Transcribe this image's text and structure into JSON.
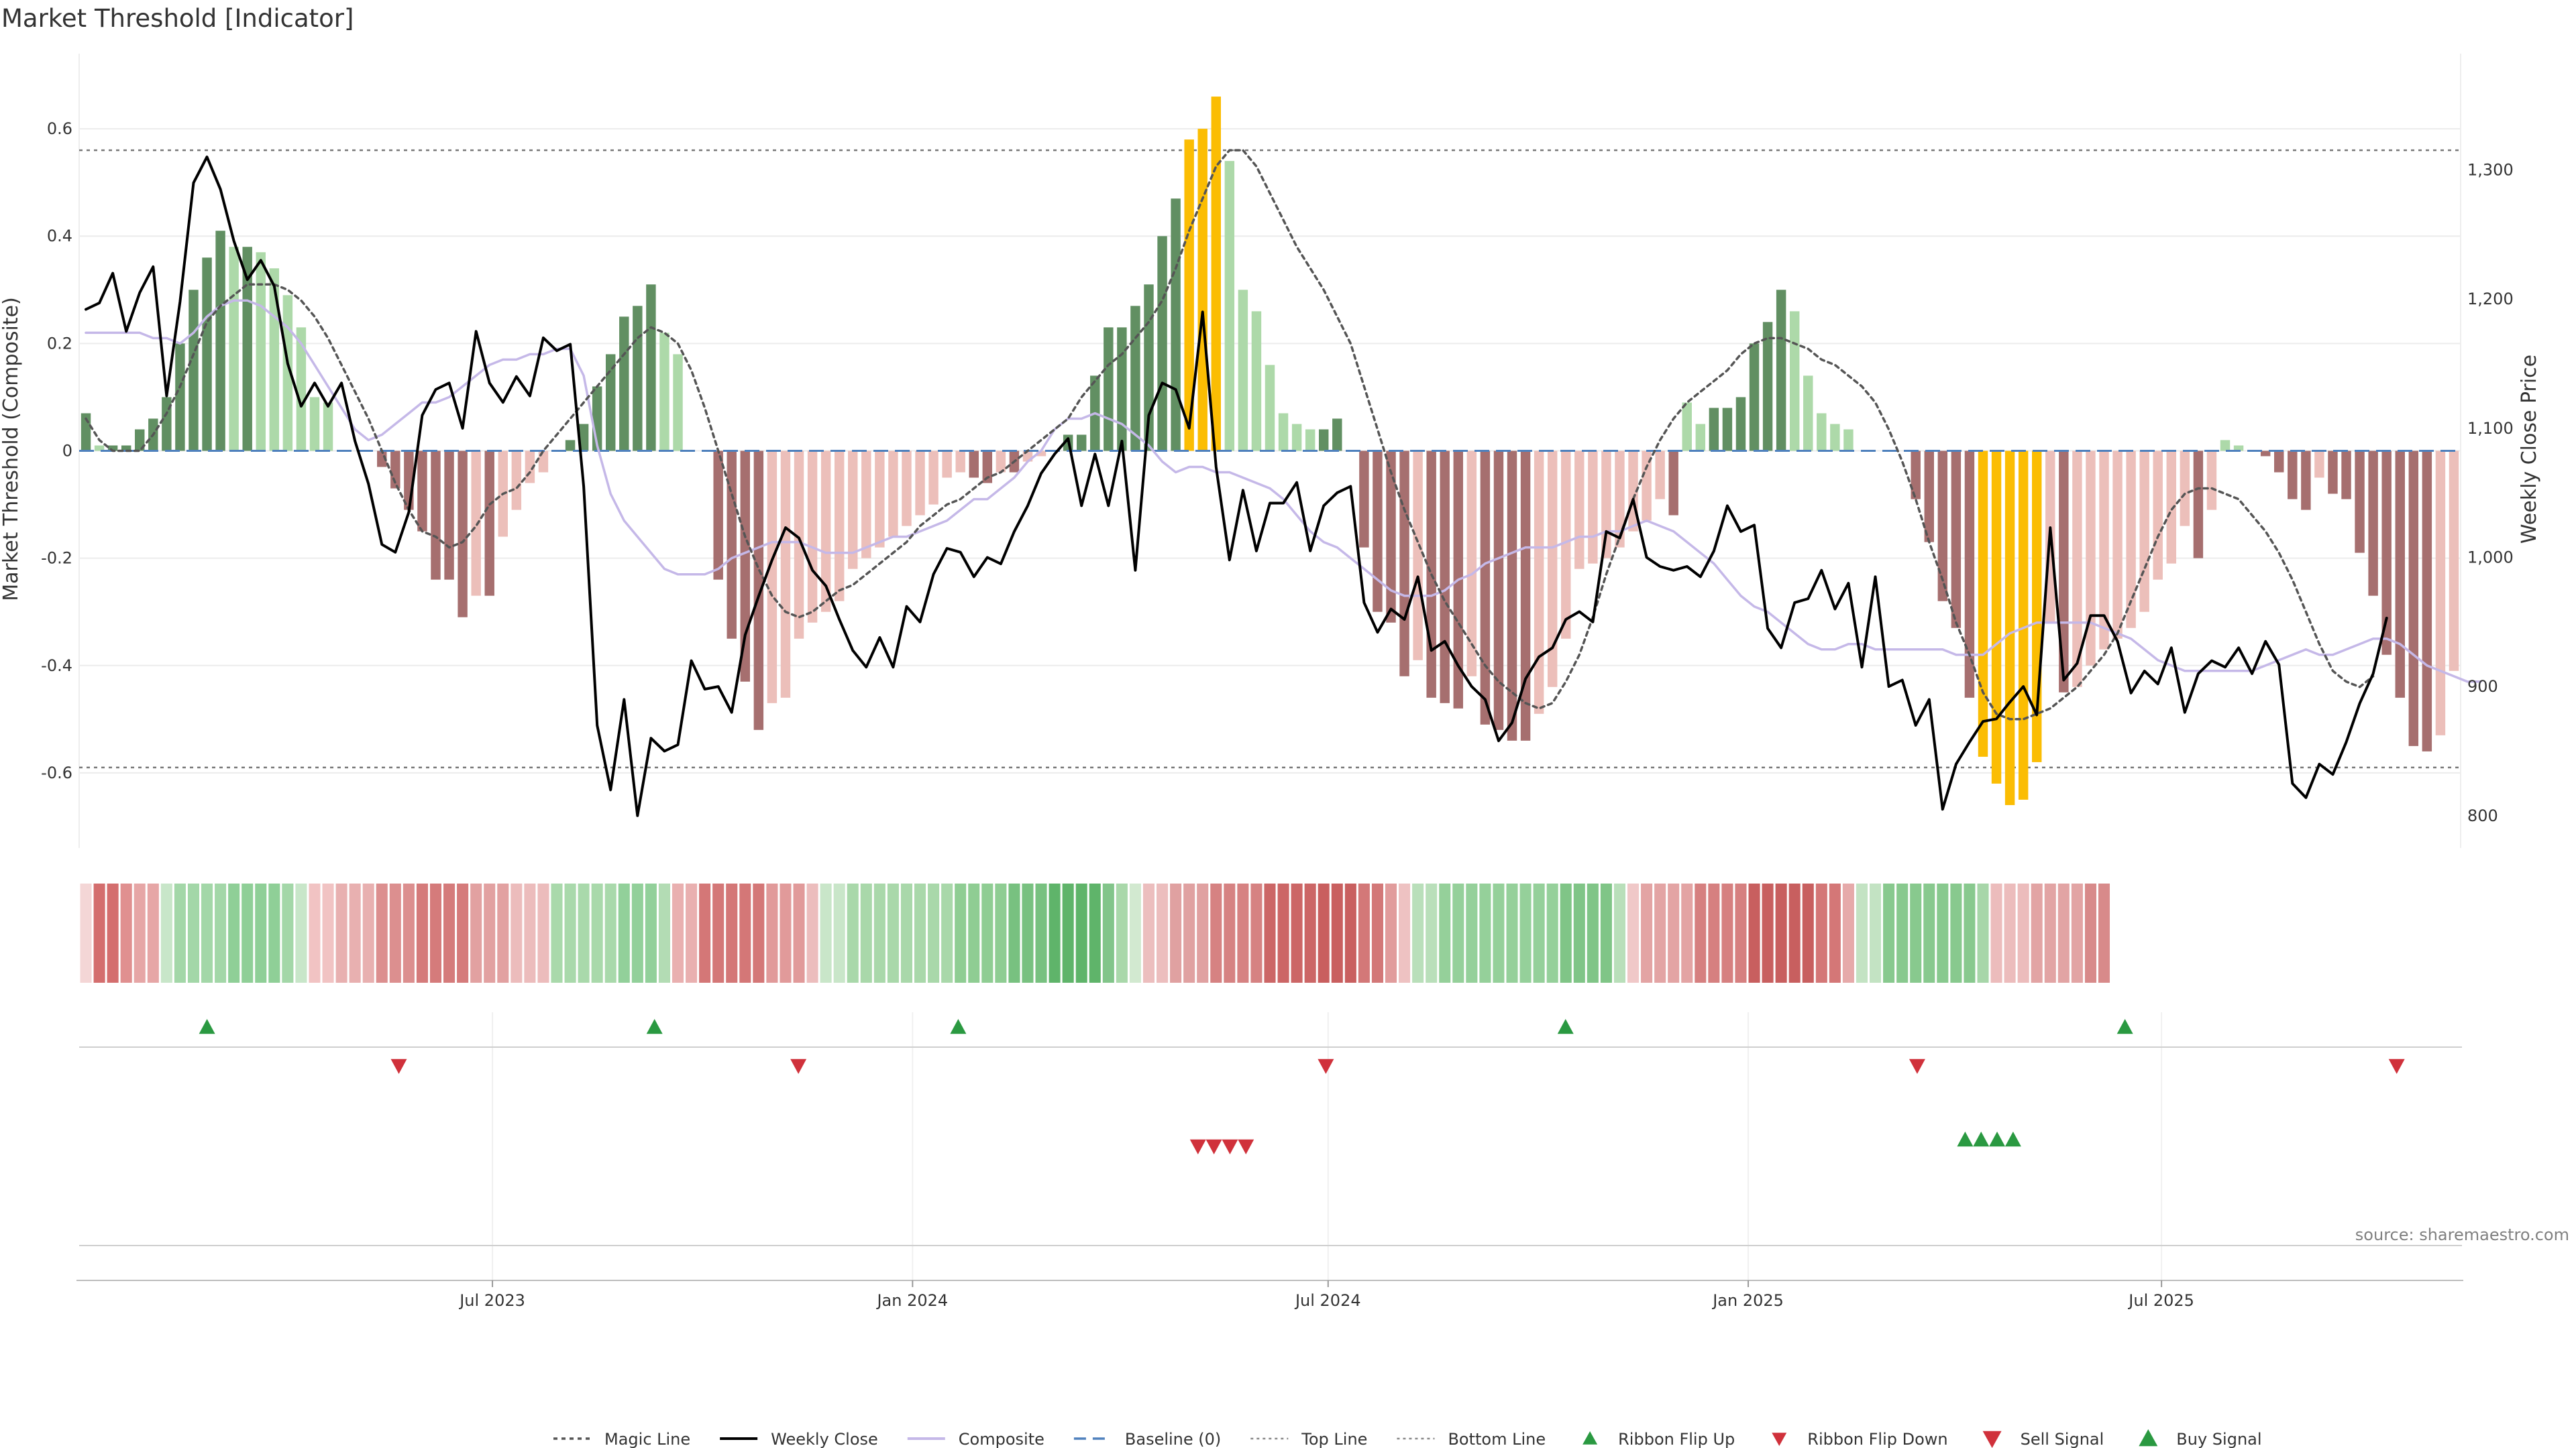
{
  "chart_data": {
    "type": "bar",
    "title": "Market Threshold [Indicator]",
    "ylabel_left": "Market Threshold (Composite)",
    "ylabel_right": "Weekly Close Price",
    "source": "source: sharemaestro.com",
    "x_range": [
      "2023-01-01",
      "2025-11-09"
    ],
    "x_ticks": [
      {
        "date": "2023-07-01",
        "label": "Jul 2023"
      },
      {
        "date": "2024-01-01",
        "label": "Jan 2024"
      },
      {
        "date": "2024-07-01",
        "label": "Jul 2024"
      },
      {
        "date": "2025-01-01",
        "label": "Jan 2025"
      },
      {
        "date": "2025-07-01",
        "label": "Jul 2025"
      }
    ],
    "y_left": {
      "range": [
        -0.74,
        0.74
      ],
      "ticks": [
        0.6,
        0.4,
        0.2,
        0,
        -0.2,
        -0.4,
        -0.6
      ],
      "tick_labels": [
        "0.6",
        "0.4",
        "0.2",
        "0",
        "-0.2",
        "-0.4",
        "-0.6"
      ]
    },
    "y_right": {
      "range": [
        775,
        1390
      ],
      "ticks": [
        1300,
        1200,
        1100,
        1000,
        900,
        800
      ],
      "tick_labels": [
        "1,300",
        "1,200",
        "1,100",
        "1,000",
        "900",
        "800"
      ]
    },
    "top_line": 0.56,
    "bottom_line": -0.59,
    "baseline": 0,
    "grid": true,
    "legend_position": "bottom-center",
    "colors": {
      "bull_strong": "#618f62",
      "bull_weak": "#add9a9",
      "bear_strong": "#a66f6f",
      "bear_weak": "#ecbfba",
      "extreme": "#fbbd03",
      "weekly_close": "#000000",
      "composite": "#c5b8e8",
      "magic_line": "#555555",
      "baseline": "#4f81bd",
      "buy": "#2a9941",
      "sell": "#d0313b"
    },
    "composite": [
      0.07,
      0.01,
      0.01,
      0.01,
      0.04,
      0.06,
      0.1,
      0.2,
      0.3,
      0.36,
      0.41,
      0.38,
      0.38,
      0.37,
      0.34,
      0.29,
      0.23,
      0.1,
      0.09,
      0.0,
      0.0,
      0.0,
      -0.03,
      -0.07,
      -0.11,
      -0.15,
      -0.24,
      -0.24,
      -0.31,
      -0.27,
      -0.27,
      -0.16,
      -0.11,
      -0.06,
      -0.04,
      0.0,
      0.02,
      0.05,
      0.12,
      0.18,
      0.25,
      0.27,
      0.31,
      0.22,
      0.18,
      0.0,
      0.0,
      -0.24,
      -0.35,
      -0.43,
      -0.52,
      -0.47,
      -0.46,
      -0.35,
      -0.32,
      -0.3,
      -0.28,
      -0.22,
      -0.2,
      -0.18,
      -0.16,
      -0.14,
      -0.12,
      -0.1,
      -0.05,
      -0.04,
      -0.05,
      -0.06,
      -0.04,
      -0.04,
      -0.02,
      -0.01,
      0.0,
      0.03,
      0.03,
      0.14,
      0.23,
      0.23,
      0.27,
      0.31,
      0.4,
      0.47,
      0.58,
      0.6,
      0.66,
      0.54,
      0.3,
      0.26,
      0.16,
      0.07,
      0.05,
      0.04,
      0.04,
      0.06,
      0.0,
      -0.18,
      -0.3,
      -0.32,
      -0.42,
      -0.39,
      -0.46,
      -0.47,
      -0.48,
      -0.42,
      -0.51,
      -0.52,
      -0.54,
      -0.54,
      -0.49,
      -0.44,
      -0.35,
      -0.22,
      -0.21,
      -0.2,
      -0.18,
      -0.15,
      -0.13,
      -0.09,
      -0.12,
      0.09,
      0.05,
      0.08,
      0.08,
      0.1,
      0.2,
      0.24,
      0.3,
      0.26,
      0.14,
      0.07,
      0.05,
      0.04,
      0.0,
      0.0,
      0.0,
      0.0,
      -0.09,
      -0.17,
      -0.28,
      -0.33,
      -0.46,
      -0.57,
      -0.62,
      -0.66,
      -0.65,
      -0.58,
      -0.32,
      -0.45,
      -0.44,
      -0.4,
      -0.37,
      -0.35,
      -0.33,
      -0.3,
      -0.24,
      -0.21,
      -0.14,
      -0.2,
      -0.11,
      0.02,
      0.01,
      0.0,
      -0.01,
      -0.04,
      -0.09,
      -0.11,
      -0.05,
      -0.08,
      -0.09,
      -0.19,
      -0.27,
      -0.38,
      -0.46,
      -0.55,
      -0.56,
      -0.53,
      -0.41
    ],
    "weekly_close": [
      1192,
      1197,
      1220,
      1175,
      1205,
      1225,
      1125,
      1198,
      1290,
      1310,
      1285,
      1245,
      1215,
      1230,
      1210,
      1150,
      1117,
      1135,
      1117,
      1135,
      1090,
      1057,
      1010,
      1004,
      1035,
      1110,
      1130,
      1135,
      1100,
      1175,
      1135,
      1120,
      1140,
      1125,
      1170,
      1160,
      1165,
      1055,
      870,
      820,
      890,
      800,
      860,
      850,
      855,
      920,
      898,
      900,
      880,
      940,
      970,
      998,
      1023,
      1015,
      990,
      978,
      952,
      928,
      915,
      938,
      915,
      962,
      950,
      987,
      1007,
      1004,
      985,
      1000,
      995,
      1020,
      1040,
      1065,
      1080,
      1092,
      1040,
      1080,
      1040,
      1090,
      990,
      1110,
      1135,
      1130,
      1100,
      1190,
      1070,
      998,
      1052,
      1005,
      1042,
      1042,
      1058,
      1005,
      1040,
      1050,
      1055,
      965,
      942,
      960,
      952,
      985,
      928,
      935,
      916,
      900,
      890,
      858,
      872,
      906,
      923,
      930,
      952,
      958,
      950,
      1020,
      1015,
      1045,
      1000,
      993,
      990,
      993,
      985,
      1005,
      1040,
      1020,
      1025,
      945,
      930,
      965,
      968,
      990,
      960,
      980,
      915,
      985,
      900,
      905,
      870,
      890,
      805,
      840,
      857,
      873,
      875,
      888,
      900,
      878,
      1023,
      905,
      918,
      955,
      955,
      935,
      895,
      912,
      902,
      930,
      880,
      910,
      920,
      915,
      930,
      910,
      935,
      917,
      825,
      814,
      840,
      832,
      857,
      887,
      910,
      953
    ],
    "composite_smooth": [
      0.22,
      0.22,
      0.22,
      0.22,
      0.22,
      0.21,
      0.21,
      0.2,
      0.22,
      0.25,
      0.27,
      0.28,
      0.28,
      0.27,
      0.25,
      0.23,
      0.2,
      0.16,
      0.12,
      0.08,
      0.04,
      0.02,
      0.03,
      0.05,
      0.07,
      0.09,
      0.09,
      0.1,
      0.12,
      0.14,
      0.16,
      0.17,
      0.17,
      0.18,
      0.18,
      0.19,
      0.19,
      0.14,
      0.01,
      -0.08,
      -0.13,
      -0.16,
      -0.19,
      -0.22,
      -0.23,
      -0.23,
      -0.23,
      -0.22,
      -0.2,
      -0.19,
      -0.18,
      -0.17,
      -0.17,
      -0.17,
      -0.18,
      -0.19,
      -0.19,
      -0.19,
      -0.18,
      -0.17,
      -0.16,
      -0.16,
      -0.15,
      -0.14,
      -0.13,
      -0.11,
      -0.09,
      -0.09,
      -0.07,
      -0.05,
      -0.02,
      0.0,
      0.04,
      0.06,
      0.06,
      0.07,
      0.06,
      0.05,
      0.03,
      0.01,
      -0.02,
      -0.04,
      -0.03,
      -0.03,
      -0.04,
      -0.04,
      -0.05,
      -0.06,
      -0.07,
      -0.09,
      -0.12,
      -0.15,
      -0.17,
      -0.18,
      -0.2,
      -0.22,
      -0.24,
      -0.26,
      -0.27,
      -0.27,
      -0.27,
      -0.26,
      -0.24,
      -0.23,
      -0.21,
      -0.2,
      -0.19,
      -0.18,
      -0.18,
      -0.18,
      -0.17,
      -0.16,
      -0.16,
      -0.15,
      -0.15,
      -0.14,
      -0.13,
      -0.14,
      -0.15,
      -0.17,
      -0.19,
      -0.21,
      -0.24,
      -0.27,
      -0.29,
      -0.3,
      -0.32,
      -0.34,
      -0.36,
      -0.37,
      -0.37,
      -0.36,
      -0.36,
      -0.37,
      -0.37,
      -0.37,
      -0.37,
      -0.37,
      -0.37,
      -0.38,
      -0.38,
      -0.38,
      -0.36,
      -0.34,
      -0.33,
      -0.32,
      -0.32,
      -0.32,
      -0.32,
      -0.32,
      -0.33,
      -0.34,
      -0.35,
      -0.37,
      -0.39,
      -0.4,
      -0.41,
      -0.41,
      -0.41,
      -0.41,
      -0.41,
      -0.41,
      -0.4,
      -0.39,
      -0.38,
      -0.37,
      -0.38,
      -0.38,
      -0.37,
      -0.36,
      -0.35,
      -0.35,
      -0.36,
      -0.38,
      -0.4,
      -0.41,
      -0.42,
      -0.43,
      -0.43
    ],
    "magic_line": [
      0.06,
      0.02,
      0.0,
      0.0,
      0.0,
      0.03,
      0.07,
      0.12,
      0.18,
      0.24,
      0.27,
      0.29,
      0.31,
      0.31,
      0.31,
      0.3,
      0.28,
      0.25,
      0.21,
      0.16,
      0.11,
      0.06,
      0.0,
      -0.06,
      -0.11,
      -0.15,
      -0.16,
      -0.18,
      -0.17,
      -0.14,
      -0.1,
      -0.08,
      -0.07,
      -0.04,
      0.0,
      0.03,
      0.06,
      0.09,
      0.12,
      0.15,
      0.18,
      0.21,
      0.23,
      0.22,
      0.2,
      0.15,
      0.08,
      0.0,
      -0.08,
      -0.16,
      -0.22,
      -0.27,
      -0.3,
      -0.31,
      -0.3,
      -0.28,
      -0.26,
      -0.25,
      -0.23,
      -0.21,
      -0.19,
      -0.17,
      -0.14,
      -0.12,
      -0.1,
      -0.09,
      -0.07,
      -0.05,
      -0.04,
      -0.02,
      0.0,
      0.02,
      0.04,
      0.06,
      0.1,
      0.13,
      0.16,
      0.18,
      0.21,
      0.24,
      0.28,
      0.34,
      0.41,
      0.47,
      0.53,
      0.56,
      0.56,
      0.53,
      0.48,
      0.43,
      0.38,
      0.34,
      0.3,
      0.25,
      0.2,
      0.12,
      0.04,
      -0.04,
      -0.11,
      -0.17,
      -0.23,
      -0.28,
      -0.32,
      -0.36,
      -0.4,
      -0.43,
      -0.45,
      -0.47,
      -0.48,
      -0.47,
      -0.43,
      -0.38,
      -0.31,
      -0.23,
      -0.16,
      -0.09,
      -0.03,
      0.02,
      0.06,
      0.09,
      0.11,
      0.13,
      0.15,
      0.18,
      0.2,
      0.21,
      0.21,
      0.2,
      0.19,
      0.17,
      0.16,
      0.14,
      0.12,
      0.09,
      0.04,
      -0.02,
      -0.09,
      -0.17,
      -0.24,
      -0.32,
      -0.38,
      -0.45,
      -0.49,
      -0.5,
      -0.5,
      -0.49,
      -0.48,
      -0.46,
      -0.44,
      -0.41,
      -0.38,
      -0.34,
      -0.28,
      -0.22,
      -0.16,
      -0.11,
      -0.08,
      -0.07,
      -0.07,
      -0.08,
      -0.09,
      -0.12,
      -0.15,
      -0.19,
      -0.24,
      -0.3,
      -0.36,
      -0.41,
      -0.43,
      -0.44,
      -0.42
    ],
    "ribbon": [
      {
        "n": 1,
        "c": "#f4d6d6"
      },
      {
        "n": 2,
        "c": "#d46e6e"
      },
      {
        "n": 1,
        "c": "#e09090"
      },
      {
        "n": 2,
        "c": "#e6a6a6"
      },
      {
        "n": 1,
        "c": "#c8e6c9"
      },
      {
        "n": 4,
        "c": "#a3d7a8"
      },
      {
        "n": 4,
        "c": "#8fcf97"
      },
      {
        "n": 1,
        "c": "#a3d7a8"
      },
      {
        "n": 1,
        "c": "#c8e6c9"
      },
      {
        "n": 2,
        "c": "#f1c3c3"
      },
      {
        "n": 3,
        "c": "#e8b0b0"
      },
      {
        "n": 3,
        "c": "#dc8f8f"
      },
      {
        "n": 4,
        "c": "#d57b7b"
      },
      {
        "n": 3,
        "c": "#e2a1a1"
      },
      {
        "n": 3,
        "c": "#ecbcbc"
      },
      {
        "n": 5,
        "c": "#a9d9ab"
      },
      {
        "n": 3,
        "c": "#92d09a"
      },
      {
        "n": 1,
        "c": "#b3dcb4"
      },
      {
        "n": 2,
        "c": "#e9b0b0"
      },
      {
        "n": 5,
        "c": "#d47777"
      },
      {
        "n": 3,
        "c": "#e19a9a"
      },
      {
        "n": 1,
        "c": "#ecbdbd"
      },
      {
        "n": 2,
        "c": "#c9e6c9"
      },
      {
        "n": 8,
        "c": "#a9d8aa"
      },
      {
        "n": 4,
        "c": "#8fcd93"
      },
      {
        "n": 3,
        "c": "#78c180"
      },
      {
        "n": 4,
        "c": "#5fb46a"
      },
      {
        "n": 1,
        "c": "#82c58a"
      },
      {
        "n": 1,
        "c": "#a9d8aa"
      },
      {
        "n": 1,
        "c": "#d2e9d0"
      },
      {
        "n": 2,
        "c": "#ecbebe"
      },
      {
        "n": 3,
        "c": "#e0a1a1"
      },
      {
        "n": 4,
        "c": "#d68282"
      },
      {
        "n": 4,
        "c": "#cc6666"
      },
      {
        "n": 3,
        "c": "#c95f5f"
      },
      {
        "n": 2,
        "c": "#d37878"
      },
      {
        "n": 1,
        "c": "#e19c9c"
      },
      {
        "n": 1,
        "c": "#eec2c2"
      },
      {
        "n": 2,
        "c": "#b9dfba"
      },
      {
        "n": 9,
        "c": "#95d09a"
      },
      {
        "n": 4,
        "c": "#80c587"
      },
      {
        "n": 1,
        "c": "#b9dfba"
      },
      {
        "n": 1,
        "c": "#f0c8c8"
      },
      {
        "n": 4,
        "c": "#e3a4a4"
      },
      {
        "n": 4,
        "c": "#d68080"
      },
      {
        "n": 5,
        "c": "#c85f5f"
      },
      {
        "n": 2,
        "c": "#d47777"
      },
      {
        "n": 1,
        "c": "#e6aaaa"
      },
      {
        "n": 2,
        "c": "#c3e3c3"
      },
      {
        "n": 7,
        "c": "#88c98e"
      },
      {
        "n": 1,
        "c": "#a7d6a9"
      },
      {
        "n": 3,
        "c": "#ecbcbc"
      },
      {
        "n": 4,
        "c": "#e2a4a4"
      },
      {
        "n": 2,
        "c": "#d88a8a"
      }
    ],
    "events": {
      "ribbon_flip_up": [
        "2023-02-26",
        "2023-09-10",
        "2024-01-21",
        "2024-10-13",
        "2025-06-15"
      ],
      "ribbon_flip_down": [
        "2023-05-21",
        "2023-11-12",
        "2024-06-30",
        "2025-03-16",
        "2025-10-12"
      ],
      "sell_signal": [
        "2024-05-05",
        "2024-05-12",
        "2024-05-19",
        "2024-05-26"
      ],
      "buy_signal": [
        "2025-04-06",
        "2025-04-13",
        "2025-04-20",
        "2025-04-27"
      ]
    },
    "legend": [
      {
        "label": "Magic Line",
        "symbol": "dotted-line"
      },
      {
        "label": "Weekly Close",
        "symbol": "solid-line"
      },
      {
        "label": "Composite",
        "symbol": "line"
      },
      {
        "label": "Baseline (0)",
        "symbol": "dashed-line"
      },
      {
        "label": "Top Line",
        "symbol": "dotted-line-light"
      },
      {
        "label": "Bottom Line",
        "symbol": "dotted-line-light"
      },
      {
        "label": "Ribbon Flip Up",
        "symbol": "triangle-up"
      },
      {
        "label": "Ribbon Flip Down",
        "symbol": "triangle-down"
      },
      {
        "label": "Sell Signal",
        "symbol": "triangle-down"
      },
      {
        "label": "Buy Signal",
        "symbol": "triangle-up"
      }
    ]
  }
}
